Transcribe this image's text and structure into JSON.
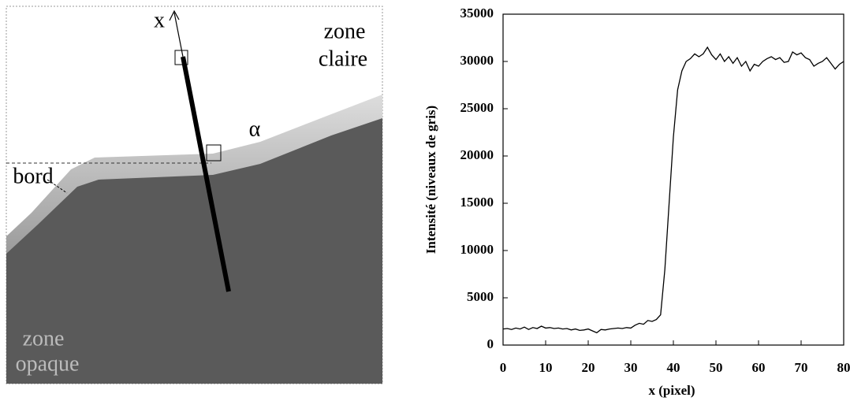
{
  "image": {
    "labels": [
      "x",
      "zone",
      "claire",
      "α",
      "bord",
      "zone",
      "opaque"
    ]
  },
  "chart_data": {
    "type": "line",
    "x_label": "x (pixel)",
    "y_label": "Intensité (niveaux de gris)",
    "x": [
      0,
      1,
      2,
      3,
      4,
      5,
      6,
      7,
      8,
      9,
      10,
      11,
      12,
      13,
      14,
      15,
      16,
      17,
      18,
      19,
      20,
      21,
      22,
      23,
      24,
      25,
      26,
      27,
      28,
      29,
      30,
      31,
      32,
      33,
      34,
      35,
      36,
      37,
      38,
      39,
      40,
      41,
      42,
      43,
      44,
      45,
      46,
      47,
      48,
      49,
      50,
      51,
      52,
      53,
      54,
      55,
      56,
      57,
      58,
      59,
      60,
      61,
      62,
      63,
      64,
      65,
      66,
      67,
      68,
      69,
      70,
      71,
      72,
      73,
      74,
      75,
      76,
      77,
      78,
      79,
      80
    ],
    "values": [
      1700,
      1750,
      1650,
      1800,
      1700,
      1900,
      1650,
      1850,
      1750,
      2000,
      1800,
      1850,
      1750,
      1800,
      1700,
      1750,
      1600,
      1700,
      1550,
      1600,
      1700,
      1500,
      1300,
      1650,
      1600,
      1700,
      1750,
      1800,
      1750,
      1850,
      1800,
      2100,
      2300,
      2200,
      2600,
      2500,
      2700,
      3200,
      8000,
      15000,
      22000,
      27000,
      29000,
      30000,
      30300,
      30800,
      30500,
      30800,
      31500,
      30700,
      30200,
      30800,
      30000,
      30500,
      29800,
      30400,
      29500,
      30000,
      29000,
      29700,
      29500,
      30000,
      30300,
      30500,
      30200,
      30400,
      29900,
      30000,
      31000,
      30700,
      30900,
      30400,
      30200,
      29500,
      29800,
      30000,
      30400,
      29800,
      29200,
      29700,
      30000
    ],
    "color": "#000000",
    "xlim": [
      0,
      80
    ],
    "xticks": [
      0,
      10,
      20,
      30,
      40,
      50,
      60,
      70,
      80
    ],
    "ylim": [
      0,
      35000
    ],
    "yticks": [
      0,
      5000,
      10000,
      15000,
      20000,
      25000,
      30000,
      35000
    ]
  }
}
